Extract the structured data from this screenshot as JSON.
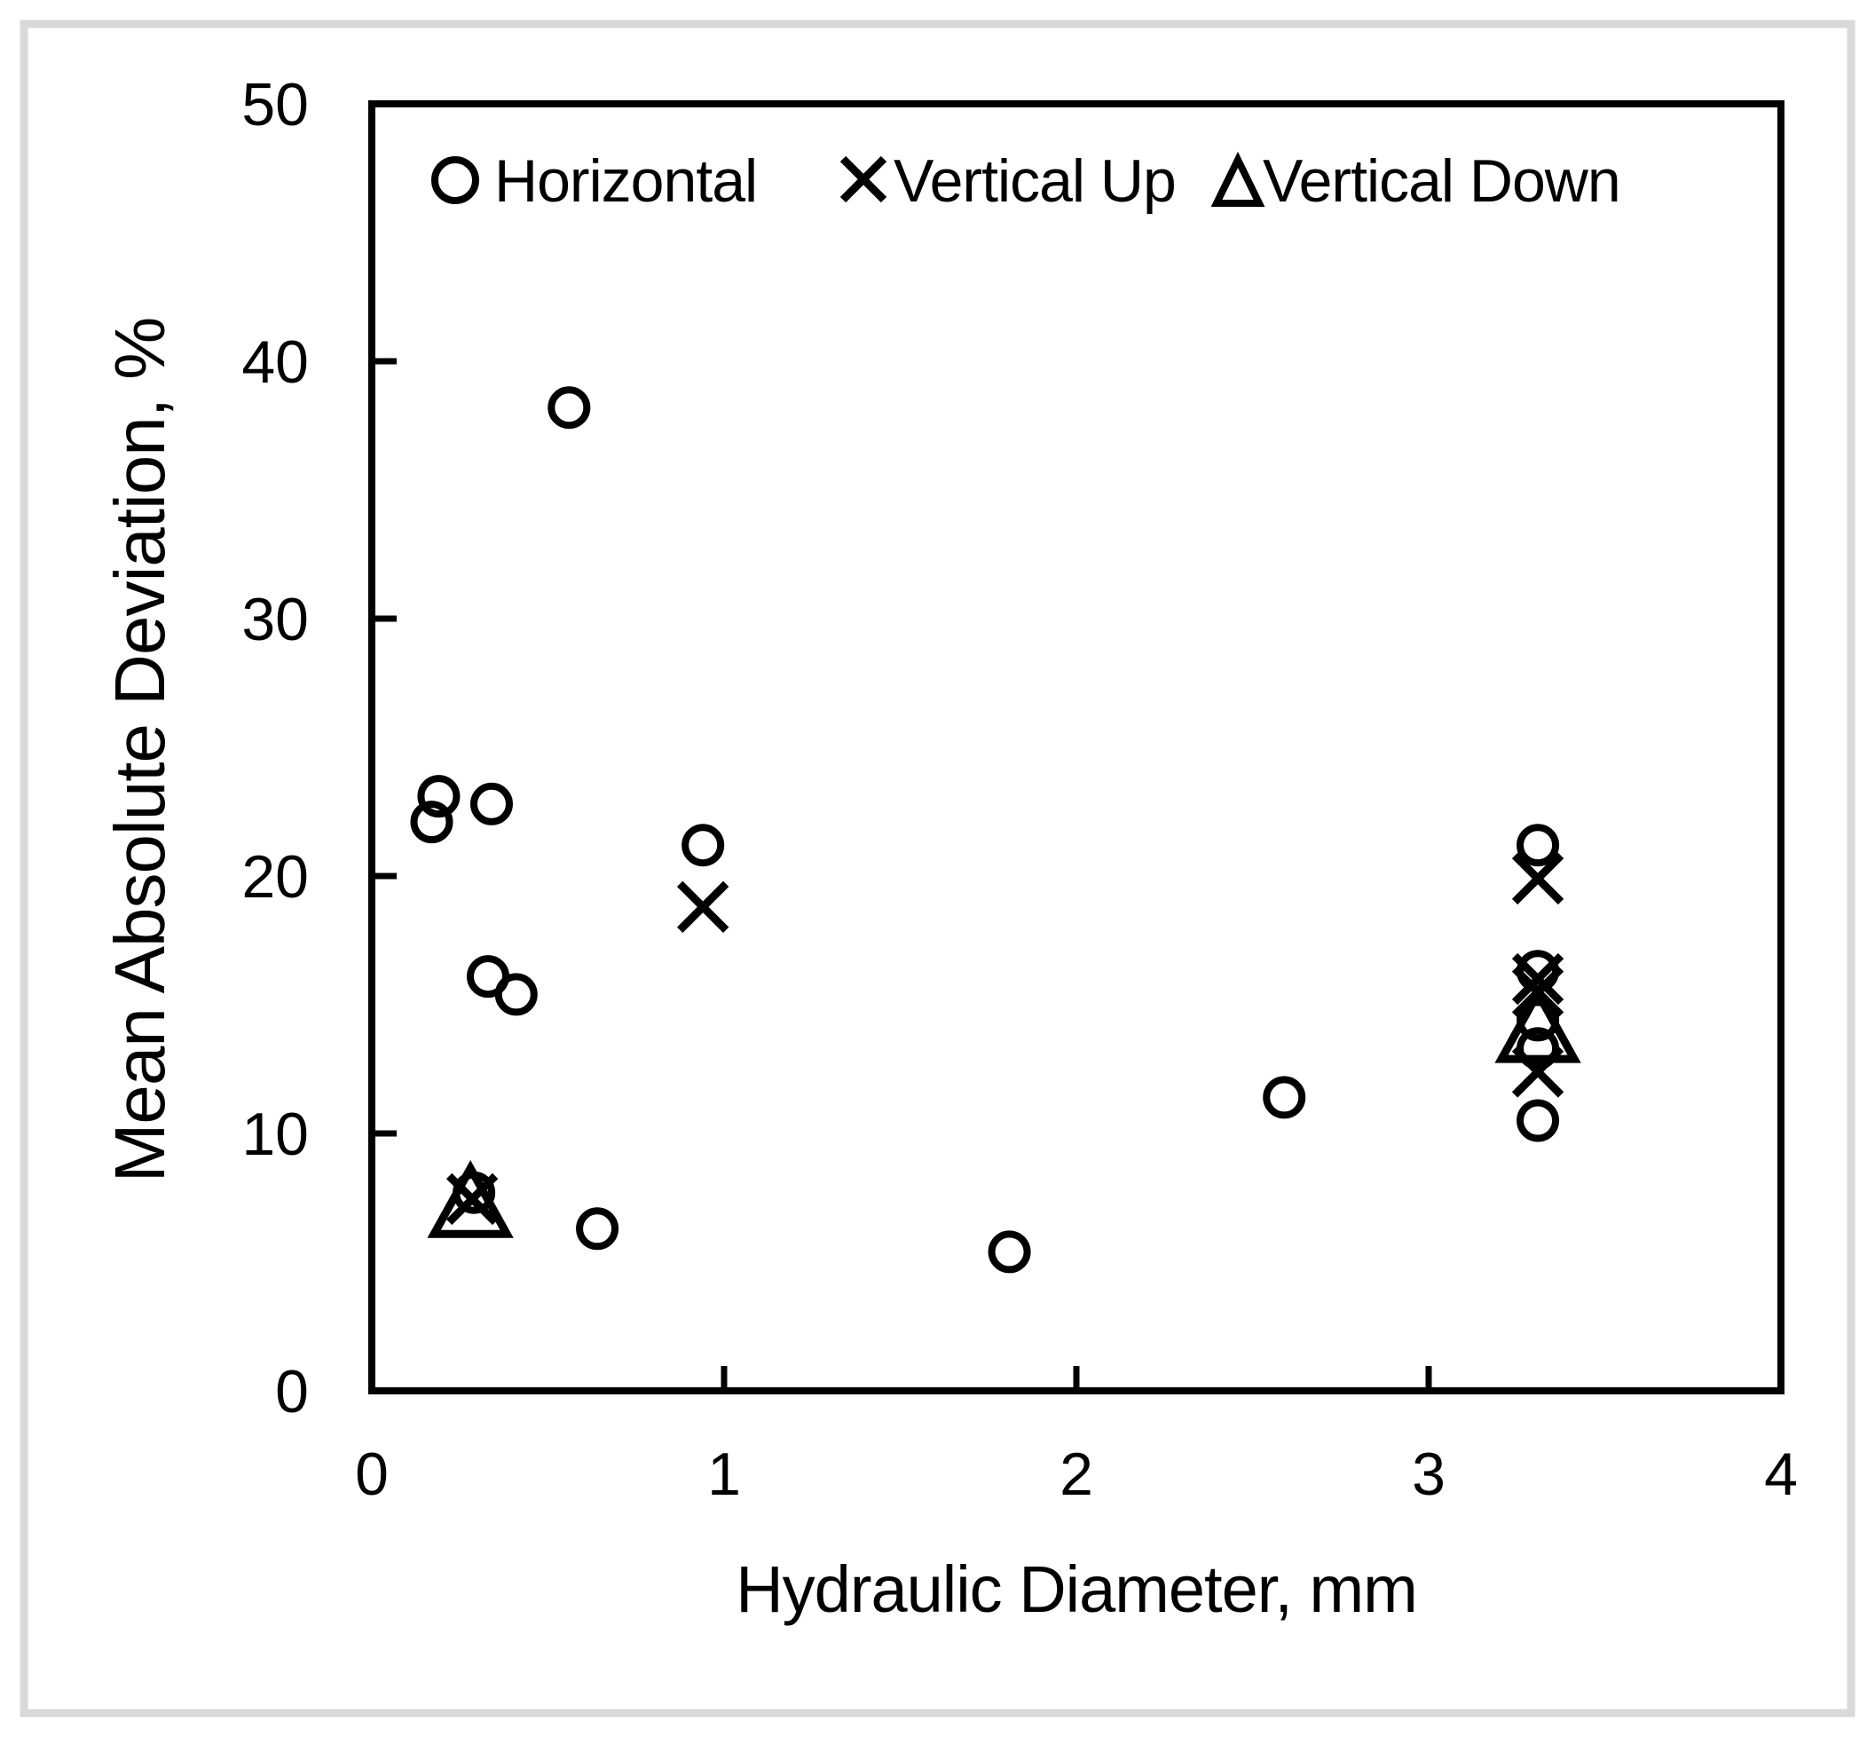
{
  "figure": {
    "background": "#ffffff",
    "frame_color": "#d9d9d9",
    "ink_color": "#000000"
  },
  "chart_data": {
    "type": "scatter",
    "title": "",
    "xlabel": "Hydraulic Diameter, mm",
    "ylabel": "Mean Absolute Deviation, %",
    "xlim": [
      0,
      4
    ],
    "ylim": [
      0,
      50
    ],
    "x_ticks": [
      0,
      1,
      2,
      3,
      4
    ],
    "y_ticks": [
      0,
      10,
      20,
      30,
      40,
      50
    ],
    "grid": false,
    "legend_position": "top-inside-row",
    "series": [
      {
        "name": "Horizontal",
        "marker": "circle",
        "points": [
          [
            0.17,
            22.1
          ],
          [
            0.19,
            23.1
          ],
          [
            0.34,
            22.8
          ],
          [
            0.56,
            38.2
          ],
          [
            0.33,
            16.1
          ],
          [
            0.41,
            15.4
          ],
          [
            0.29,
            7.7
          ],
          [
            0.64,
            6.3
          ],
          [
            0.94,
            21.2
          ],
          [
            1.81,
            5.4
          ],
          [
            2.59,
            11.4
          ],
          [
            3.31,
            21.2
          ],
          [
            3.31,
            16.3
          ],
          [
            3.31,
            14.4
          ],
          [
            3.31,
            13.3
          ],
          [
            3.31,
            10.5
          ]
        ]
      },
      {
        "name": "Vertical Up",
        "marker": "x",
        "points": [
          [
            0.285,
            7.45
          ],
          [
            0.94,
            18.8
          ],
          [
            3.31,
            19.9
          ],
          [
            3.31,
            16.0
          ],
          [
            3.31,
            15.5
          ],
          [
            3.31,
            12.4
          ]
        ]
      },
      {
        "name": "Vertical Down",
        "marker": "triangle",
        "points": [
          [
            0.28,
            7.3
          ],
          [
            3.31,
            14.1
          ]
        ]
      }
    ]
  }
}
